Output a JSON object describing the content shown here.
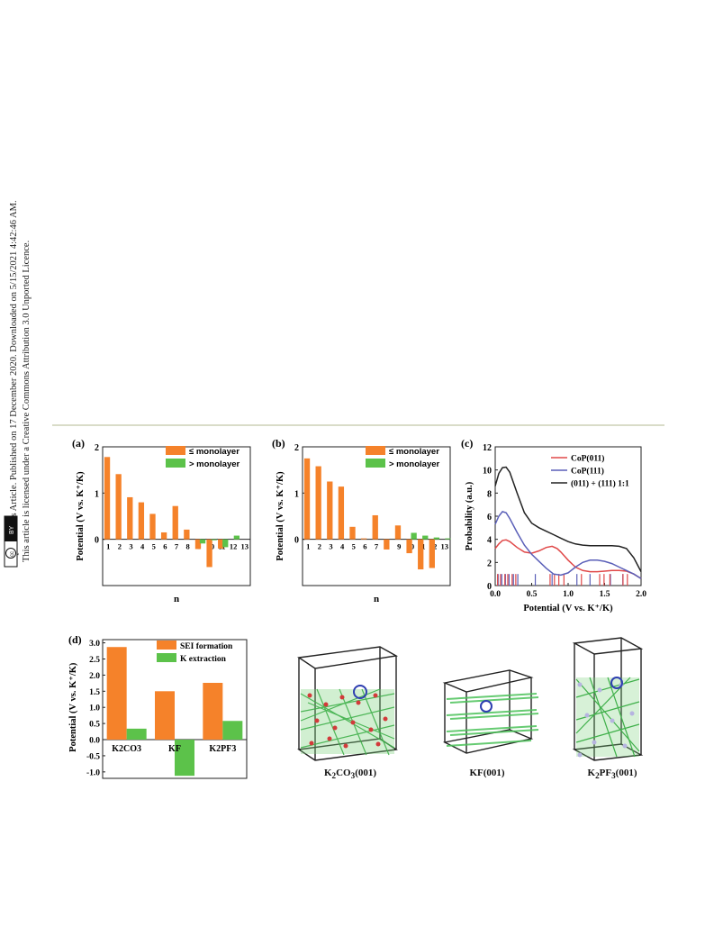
{
  "sidebar": {
    "line1": "Open Access Article. Published on 17 December 2020. Downloaded on 5/15/2021 4:42:46 AM.",
    "line2": "This article is licensed under a Creative Commons Attribution 3.0 Unported Licence.",
    "cc_badge": "cc",
    "by_badge": "BY"
  },
  "colors": {
    "orange": "#F5822A",
    "green": "#5CC24A",
    "red": "#E04848",
    "blue": "#5A5FB8",
    "black": "#222222"
  },
  "chart_data": [
    {
      "id": "a",
      "panel_label": "(a)",
      "type": "bar",
      "ylabel": "Potential (V vs. K⁺/K)",
      "xlabel": "n",
      "ylim": [
        -1,
        2
      ],
      "yticks": [
        0,
        1,
        2
      ],
      "categories": [
        "1",
        "2",
        "3",
        "4",
        "5",
        "6",
        "7",
        "8",
        "9",
        "10",
        "11",
        "12",
        "13"
      ],
      "series": [
        {
          "name": "≤ monolayer",
          "values": [
            1.78,
            1.41,
            0.91,
            0.8,
            0.55,
            0.15,
            0.72,
            0.21,
            -0.21,
            -0.6,
            -0.2,
            null,
            null
          ]
        },
        {
          "name": "> monolayer",
          "values": [
            null,
            null,
            null,
            null,
            null,
            null,
            null,
            null,
            -0.09,
            -0.02,
            -0.17,
            0.08,
            null
          ]
        }
      ],
      "legend_position": "top-right"
    },
    {
      "id": "b",
      "panel_label": "(b)",
      "type": "bar",
      "ylabel": "Potential (V vs. K⁺/K)",
      "xlabel": "n",
      "ylim": [
        -1,
        2
      ],
      "yticks": [
        0,
        1,
        2
      ],
      "categories": [
        "1",
        "2",
        "3",
        "4",
        "5",
        "6",
        "7",
        "8",
        "9",
        "10",
        "11",
        "12",
        "13"
      ],
      "series": [
        {
          "name": "≤ monolayer",
          "values": [
            1.75,
            1.58,
            1.25,
            1.14,
            0.27,
            0.02,
            0.52,
            -0.22,
            0.3,
            -0.3,
            -0.65,
            -0.62,
            null
          ]
        },
        {
          "name": "> monolayer",
          "values": [
            null,
            null,
            null,
            null,
            null,
            null,
            null,
            null,
            null,
            0.14,
            0.08,
            0.04,
            0.02
          ]
        }
      ],
      "legend_position": "top-right"
    },
    {
      "id": "c",
      "panel_label": "(c)",
      "type": "line",
      "ylabel": "Probability (a.u.)",
      "xlabel": "Potential (V vs. K⁺/K)",
      "xlim": [
        0,
        2
      ],
      "ylim": [
        0,
        12
      ],
      "xticks": [
        0.0,
        0.5,
        1.0,
        1.5,
        2.0
      ],
      "xtick_labels": [
        "0.0",
        "0.5",
        "1.0",
        "1.5",
        "2.0"
      ],
      "yticks": [
        0,
        2,
        4,
        6,
        8,
        10,
        12
      ],
      "series": [
        {
          "name": "CoP(011)",
          "color": "red",
          "x": [
            0,
            0.05,
            0.1,
            0.15,
            0.2,
            0.3,
            0.4,
            0.5,
            0.6,
            0.7,
            0.78,
            0.85,
            0.9,
            1.0,
            1.1,
            1.2,
            1.3,
            1.4,
            1.5,
            1.6,
            1.7,
            1.8,
            1.9,
            2.0
          ],
          "y": [
            3.2,
            3.6,
            3.9,
            3.95,
            3.8,
            3.3,
            2.9,
            2.8,
            3.0,
            3.3,
            3.4,
            3.2,
            2.9,
            2.2,
            1.6,
            1.3,
            1.2,
            1.2,
            1.25,
            1.3,
            1.3,
            1.25,
            1.0,
            0.6
          ]
        },
        {
          "name": "CoP(111)",
          "color": "blue",
          "x": [
            0,
            0.05,
            0.1,
            0.15,
            0.2,
            0.3,
            0.4,
            0.5,
            0.6,
            0.7,
            0.8,
            0.9,
            1.0,
            1.1,
            1.2,
            1.3,
            1.4,
            1.5,
            1.6,
            1.7,
            1.8,
            1.9,
            2.0
          ],
          "y": [
            5.3,
            6.0,
            6.4,
            6.3,
            5.8,
            4.6,
            3.5,
            2.7,
            2.1,
            1.5,
            1.0,
            0.9,
            1.1,
            1.6,
            2.0,
            2.2,
            2.2,
            2.1,
            1.9,
            1.6,
            1.3,
            1.0,
            0.6
          ]
        },
        {
          "name": "(011) + (111) 1:1",
          "color": "black",
          "x": [
            0,
            0.05,
            0.1,
            0.15,
            0.2,
            0.3,
            0.4,
            0.5,
            0.6,
            0.7,
            0.8,
            0.9,
            1.0,
            1.1,
            1.2,
            1.3,
            1.4,
            1.5,
            1.6,
            1.7,
            1.8,
            1.9,
            2.0
          ],
          "y": [
            8.6,
            9.7,
            10.2,
            10.25,
            9.8,
            8.0,
            6.3,
            5.4,
            5.0,
            4.7,
            4.4,
            4.1,
            3.8,
            3.6,
            3.5,
            3.45,
            3.45,
            3.45,
            3.45,
            3.4,
            3.2,
            2.4,
            1.2
          ]
        }
      ],
      "rug_red": [
        0.02,
        0.06,
        0.12,
        0.16,
        0.22,
        0.27,
        0.74,
        0.8,
        0.86,
        0.93,
        1.17,
        1.42,
        1.48,
        1.56,
        1.74,
        1.8
      ],
      "rug_blue": [
        0.04,
        0.09,
        0.14,
        0.19,
        0.25,
        0.31,
        0.55,
        0.78,
        1.12,
        1.3,
        1.58,
        1.75
      ],
      "legend_position": "top-right"
    },
    {
      "id": "d",
      "panel_label": "(d)",
      "type": "bar",
      "ylabel": "Potential (V vs. K⁺/K)",
      "ylim": [
        -1.2,
        3.1
      ],
      "yticks": [
        -1.0,
        -0.5,
        0.0,
        0.5,
        1.0,
        1.5,
        2.0,
        2.5,
        3.0
      ],
      "ytick_labels": [
        "-1.0",
        "-0.5",
        "0.0",
        "0.5",
        "1.0",
        "1.5",
        "2.0",
        "2.5",
        "3.0"
      ],
      "categories": [
        "K2CO3",
        "KF",
        "K2PF3"
      ],
      "series": [
        {
          "name": "SEI formation",
          "values": [
            2.87,
            1.5,
            1.76
          ]
        },
        {
          "name": "K extraction",
          "values": [
            0.34,
            -1.12,
            0.58
          ]
        }
      ],
      "legend_position": "top-right"
    }
  ],
  "structures": [
    {
      "name": "K2CO3",
      "label_main": "K",
      "label_sub": "2",
      "label_rest": "CO",
      "label_sub2": "3",
      "label_tail": "(001)"
    },
    {
      "name": "KF",
      "label_main": "KF",
      "label_sub": "",
      "label_rest": "",
      "label_sub2": "",
      "label_tail": "(001)"
    },
    {
      "name": "K2PF3",
      "label_main": "K",
      "label_sub": "2",
      "label_rest": "PF",
      "label_sub2": "3",
      "label_tail": "(001)"
    }
  ]
}
